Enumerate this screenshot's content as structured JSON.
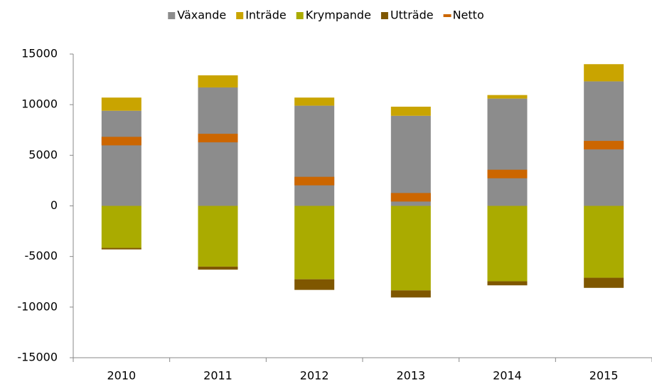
{
  "chart_data": {
    "type": "bar",
    "stacked": true,
    "categories": [
      "2010",
      "2011",
      "2012",
      "2013",
      "2014",
      "2015"
    ],
    "series": [
      {
        "name": "Växande",
        "color": "#8c8c8c",
        "values": [
          9400,
          11700,
          9900,
          8900,
          10600,
          12300
        ]
      },
      {
        "name": "Inträde",
        "color": "#c9a400",
        "values": [
          1300,
          1200,
          800,
          900,
          350,
          1700
        ]
      },
      {
        "name": "Krympande",
        "color": "#aaab00",
        "values": [
          -4150,
          -6000,
          -7250,
          -8350,
          -7450,
          -7100
        ]
      },
      {
        "name": "Utträde",
        "color": "#7f5700",
        "values": [
          -150,
          -300,
          -1050,
          -700,
          -400,
          -1000
        ]
      },
      {
        "name": "Netto",
        "color": "#cc6600",
        "type": "marker",
        "values": [
          6400,
          6700,
          2450,
          850,
          3150,
          6000
        ]
      }
    ],
    "ylim": [
      -15000,
      15000
    ],
    "yticks": [
      -15000,
      -10000,
      -5000,
      0,
      5000,
      10000,
      15000
    ],
    "grid": false,
    "legend": "top"
  }
}
